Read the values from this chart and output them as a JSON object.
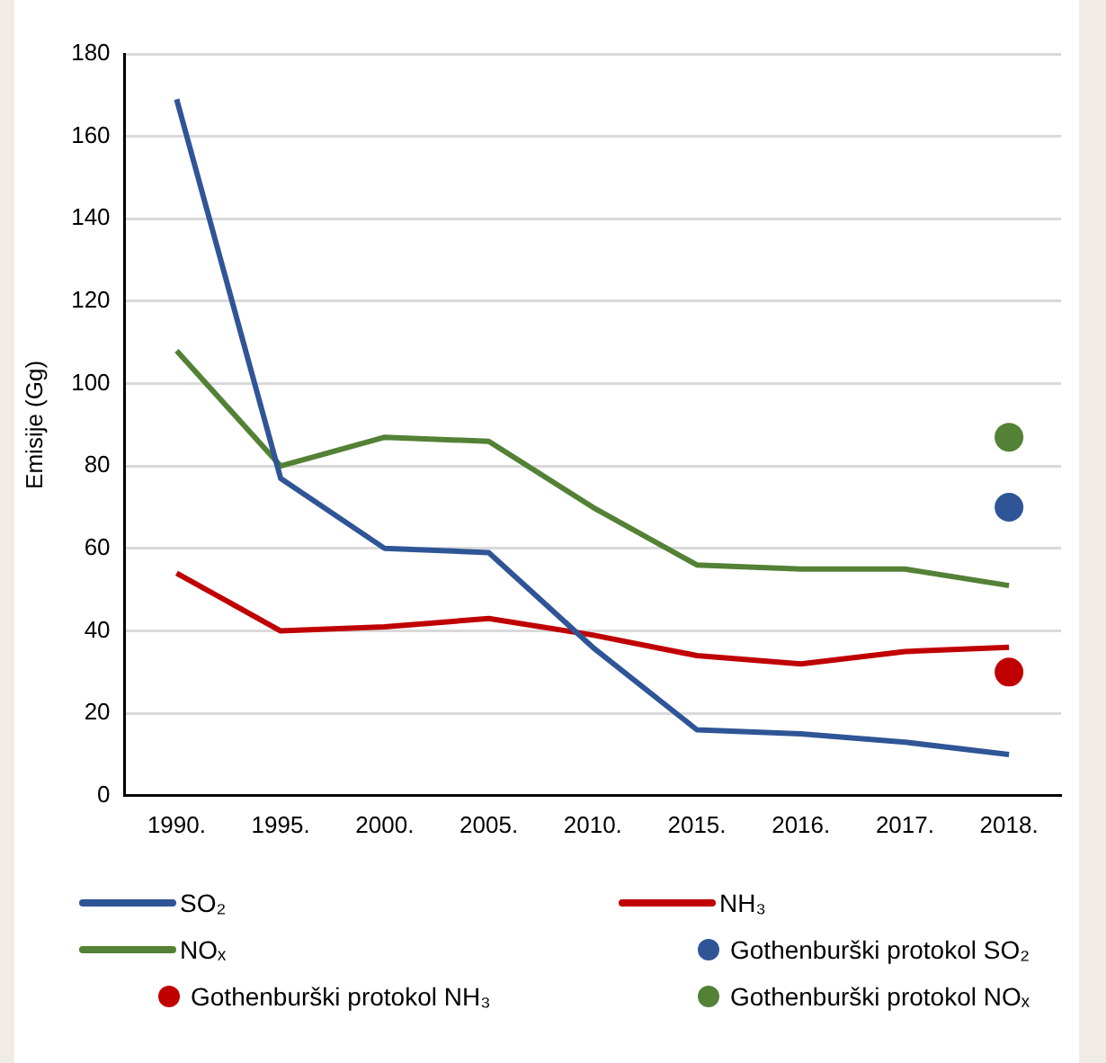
{
  "chart_data": {
    "type": "line",
    "ylabel": "Emisije (Gg)",
    "categories": [
      "1990.",
      "1995.",
      "2000.",
      "2005.",
      "2010.",
      "2015.",
      "2016.",
      "2017.",
      "2018."
    ],
    "ylim": [
      0,
      180
    ],
    "yticks": [
      0,
      20,
      40,
      60,
      80,
      100,
      120,
      140,
      160,
      180
    ],
    "grid": "y",
    "legend": "bottom",
    "marker": "none",
    "series": [
      {
        "name": "SO₂",
        "color": "#2f5597",
        "values": [
          169,
          77,
          60,
          59,
          36,
          16,
          15,
          13,
          10
        ]
      },
      {
        "name": "NH₃",
        "color": "#c00000",
        "values": [
          54,
          40,
          41,
          43,
          39,
          34,
          32,
          35,
          36
        ]
      },
      {
        "name": "NOₓ",
        "color": "#538135",
        "values": [
          108,
          80,
          87,
          86,
          70,
          56,
          55,
          55,
          51
        ]
      },
      {
        "name": "Gothenburški protokol SO₂",
        "type": "scatter",
        "marker": "circle",
        "color": "#2f5597",
        "x": [
          "2018."
        ],
        "values": [
          70
        ]
      },
      {
        "name": "Gothenburški protokol NH₃",
        "type": "scatter",
        "marker": "circle",
        "color": "#c00000",
        "x": [
          "2018."
        ],
        "values": [
          30
        ]
      },
      {
        "name": "Gothenburški protokol NOₓ",
        "type": "scatter",
        "marker": "circle",
        "color": "#538135",
        "x": [
          "2018."
        ],
        "values": [
          87
        ]
      }
    ]
  }
}
